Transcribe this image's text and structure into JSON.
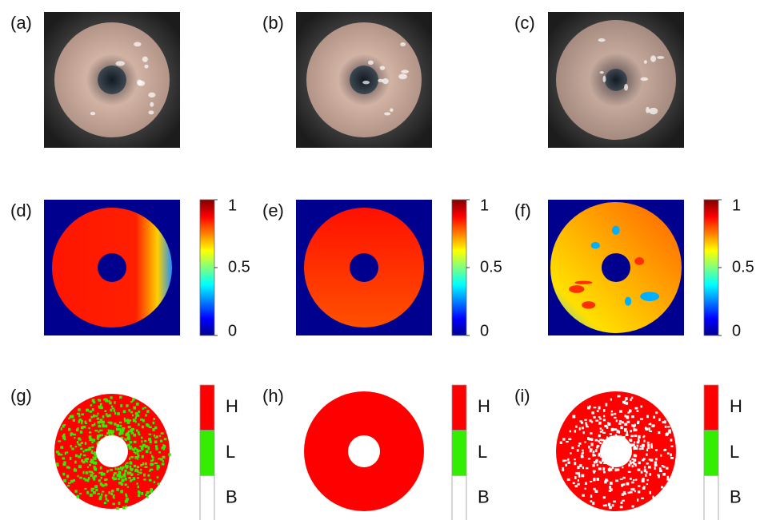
{
  "panels": [
    {
      "label": "(a)"
    },
    {
      "label": "(b)"
    },
    {
      "label": "(c)"
    },
    {
      "label": "(d)"
    },
    {
      "label": "(e)"
    },
    {
      "label": "(f)"
    },
    {
      "label": "(g)"
    },
    {
      "label": "(h)"
    },
    {
      "label": "(i)"
    }
  ],
  "colorbars": [
    {
      "ticks": [
        1,
        0.5,
        0
      ]
    },
    {
      "ticks": [
        1,
        0.5,
        0
      ]
    },
    {
      "ticks": [
        1,
        0.5,
        0
      ]
    }
  ],
  "legends": [
    {
      "labels": [
        "H",
        "L",
        "B"
      ],
      "colors": [
        "#ff0000",
        "#33ee00",
        "#ffffff"
      ]
    },
    {
      "labels": [
        "H",
        "L",
        "B"
      ],
      "colors": [
        "#ff0000",
        "#33ee00",
        "#ffffff"
      ]
    },
    {
      "labels": [
        "H",
        "L",
        "B"
      ],
      "colors": [
        "#ff0000",
        "#33ee00",
        "#ffffff"
      ]
    }
  ]
}
